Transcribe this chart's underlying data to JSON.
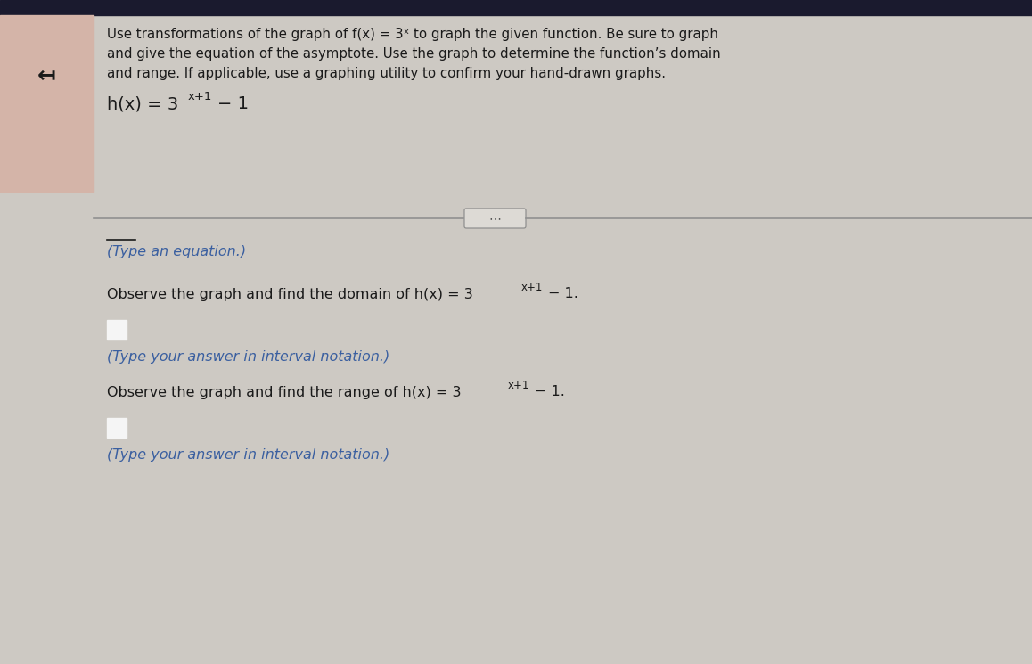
{
  "background_color": "#cdc9c3",
  "left_panel_color": "#d4b4a8",
  "main_bg_color": "#cdc9c3",
  "top_bar_color": "#1a1a2e",
  "arrow_symbol": "↤",
  "blue_text_color": "#3a5fa0",
  "dark_text_color": "#1a1a1a",
  "title_lines": [
    "Use transformations of the graph of f(x) = 3ˣ to graph the given function. Be sure to graph",
    "and give the equation of the asymptote. Use the graph to determine the function’s domain",
    "and range. If applicable, use a graphing utility to confirm your hand-drawn graphs."
  ],
  "func_main": "h(x) = 3",
  "func_sup": "x+1",
  "func_tail": "− 1",
  "divider_line_color": "#909090",
  "ellipsis_text": "⋯",
  "prompt1_overline": true,
  "prompt1": "(Type an equation.)",
  "domain_text_main": "Observe the graph and find the domain of h(x) = 3",
  "domain_text_sup": "x+1",
  "domain_text_tail": "− 1.",
  "prompt2": "(Type your answer in interval notation.)",
  "range_text_main": "Observe the graph and find the range of h(x) = 3",
  "range_text_sup": "x+1",
  "range_text_tail": "− 1.",
  "prompt3": "(Type your answer in interval notation.)"
}
